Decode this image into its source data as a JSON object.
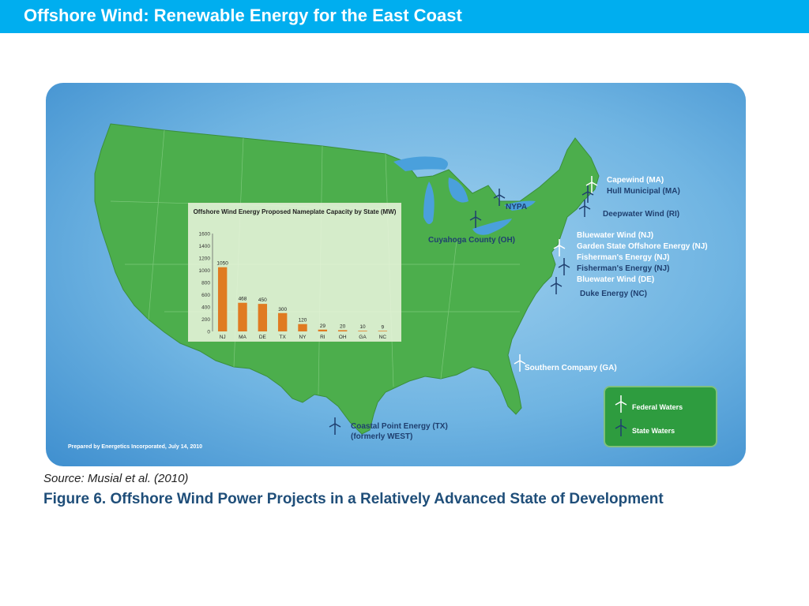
{
  "slide": {
    "title": "Offshore Wind: Renewable Energy for the East Coast",
    "source": "Source: Musial et al. (2010)",
    "caption": "Figure 6.  Offshore Wind Power Projects in a Relatively Advanced State of Development"
  },
  "map": {
    "prepared_by": "Prepared by Energetics Incorporated, July 14, 2010",
    "projects": [
      {
        "label": "Capewind (MA)",
        "waters": "federal"
      },
      {
        "label": "Hull Municipal (MA)",
        "waters": "state"
      },
      {
        "label": "Deepwater Wind (RI)",
        "waters": "state"
      },
      {
        "label": "Bluewater Wind (NJ)",
        "waters": "federal"
      },
      {
        "label": "Garden State Offshore Energy (NJ)",
        "waters": "federal"
      },
      {
        "label": "Fisherman's Energy (NJ)",
        "waters": "federal"
      },
      {
        "label": "Fisherman's Energy (NJ)",
        "waters": "state"
      },
      {
        "label": "Bluewater Wind (DE)",
        "waters": "federal"
      },
      {
        "label": "Duke Energy (NC)",
        "waters": "state"
      },
      {
        "label": "Southern Company (GA)",
        "waters": "federal"
      },
      {
        "label": "NYPA",
        "waters": "state"
      },
      {
        "label": "Cuyahoga County (OH)",
        "waters": "state"
      },
      {
        "label": "Coastal Point Energy (TX)",
        "waters": "state"
      },
      {
        "label": "(formerly WEST)",
        "waters": "state"
      }
    ],
    "legend": {
      "federal": "Federal Waters",
      "state": "State Waters"
    },
    "colors": {
      "water": "#6fb4e2",
      "land": "#4cae4c",
      "federal_turbine": "#ffffff",
      "state_turbine": "#1f3f6f"
    }
  },
  "chart_data": {
    "type": "bar",
    "title": "Offshore Wind Energy Proposed Nameplate Capacity by State (MW)",
    "categories": [
      "NJ",
      "MA",
      "DE",
      "TX",
      "NY",
      "RI",
      "OH",
      "GA",
      "NC"
    ],
    "values": [
      1050,
      468,
      450,
      300,
      120,
      29,
      20,
      10,
      9
    ],
    "yticks": [
      0,
      200,
      400,
      600,
      800,
      1000,
      1200,
      1400,
      1600
    ],
    "ylim": [
      0,
      1600
    ],
    "bar_color": "#e07b22",
    "grid": false,
    "legend": "none"
  }
}
